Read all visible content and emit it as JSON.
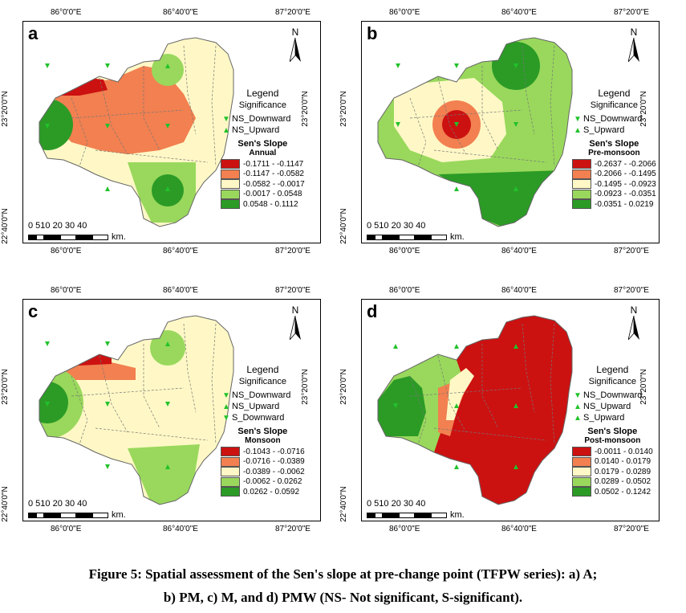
{
  "colors": {
    "dark_red": "#cc1111",
    "orange": "#f28050",
    "cream": "#fff8c6",
    "light_green": "#99d85c",
    "dark_green": "#2b9b26",
    "marker": "#22c22b"
  },
  "coords": {
    "x1": "86°0'0\"E",
    "x2": "86°40'0\"E",
    "x3": "87°20'0\"E",
    "y1": "23°20'0\"N",
    "y2": "22°40'0\"N"
  },
  "north": "N",
  "scale": {
    "numbers": "0 510 20 30 40",
    "unit": "km."
  },
  "legend_common": {
    "title": "Legend",
    "significance": "Significance",
    "slope_title": "Sen's Slope"
  },
  "panels": [
    {
      "label": "a",
      "season": "Annual",
      "markers": [
        "NS_Downward",
        "NS_Upward"
      ],
      "classes": [
        {
          "range": "-0.1711 - -0.1147",
          "color": "#cc1111"
        },
        {
          "range": "-0.1147 - -0.0582",
          "color": "#f28050"
        },
        {
          "range": "-0.0582 - -0.0017",
          "color": "#fff8c6"
        },
        {
          "range": "-0.0017 - 0.0548",
          "color": "#99d85c"
        },
        {
          "range": "0.0548 - 0.1112",
          "color": "#2b9b26"
        }
      ]
    },
    {
      "label": "b",
      "season": "Pre-monsoon",
      "markers": [
        "NS_Downward",
        "S_Upward"
      ],
      "classes": [
        {
          "range": "-0.2637 - -0.2066",
          "color": "#cc1111"
        },
        {
          "range": "-0.2066 - -0.1495",
          "color": "#f28050"
        },
        {
          "range": "-0.1495 - -0.0923",
          "color": "#fff8c6"
        },
        {
          "range": "-0.0923 - -0.0351",
          "color": "#99d85c"
        },
        {
          "range": "-0.0351 - 0.0219",
          "color": "#2b9b26"
        }
      ]
    },
    {
      "label": "c",
      "season": "Monsoon",
      "markers": [
        "NS_Downward",
        "NS_Upward",
        "S_Downward"
      ],
      "classes": [
        {
          "range": "-0.1043 - -0.0716",
          "color": "#cc1111"
        },
        {
          "range": "-0.0716 - -0.0389",
          "color": "#f28050"
        },
        {
          "range": "-0.0389 - -0.0062",
          "color": "#fff8c6"
        },
        {
          "range": "-0.0062 - 0.0262",
          "color": "#99d85c"
        },
        {
          "range": "0.0262 - 0.0592",
          "color": "#2b9b26"
        }
      ]
    },
    {
      "label": "d",
      "season": "Post-monsoon",
      "markers": [
        "NS_Downward",
        "NS_Upward",
        "S_Upward"
      ],
      "classes": [
        {
          "range": "-0.0011 - 0.0140",
          "color": "#cc1111"
        },
        {
          "range": "0.0140 - 0.0179",
          "color": "#f28050"
        },
        {
          "range": "0.0179 - 0.0289",
          "color": "#fff8c6"
        },
        {
          "range": "0.0289 - 0.0502",
          "color": "#99d85c"
        },
        {
          "range": "0.0502 - 0.1242",
          "color": "#2b9b26"
        }
      ]
    }
  ],
  "caption": {
    "line1": "Figure 5: Spatial assessment of the Sen's slope at pre-change point (TFPW series): a) A;",
    "line2": "b) PM, c) M, and d) PMW (NS- Not significant, S-significant)."
  }
}
